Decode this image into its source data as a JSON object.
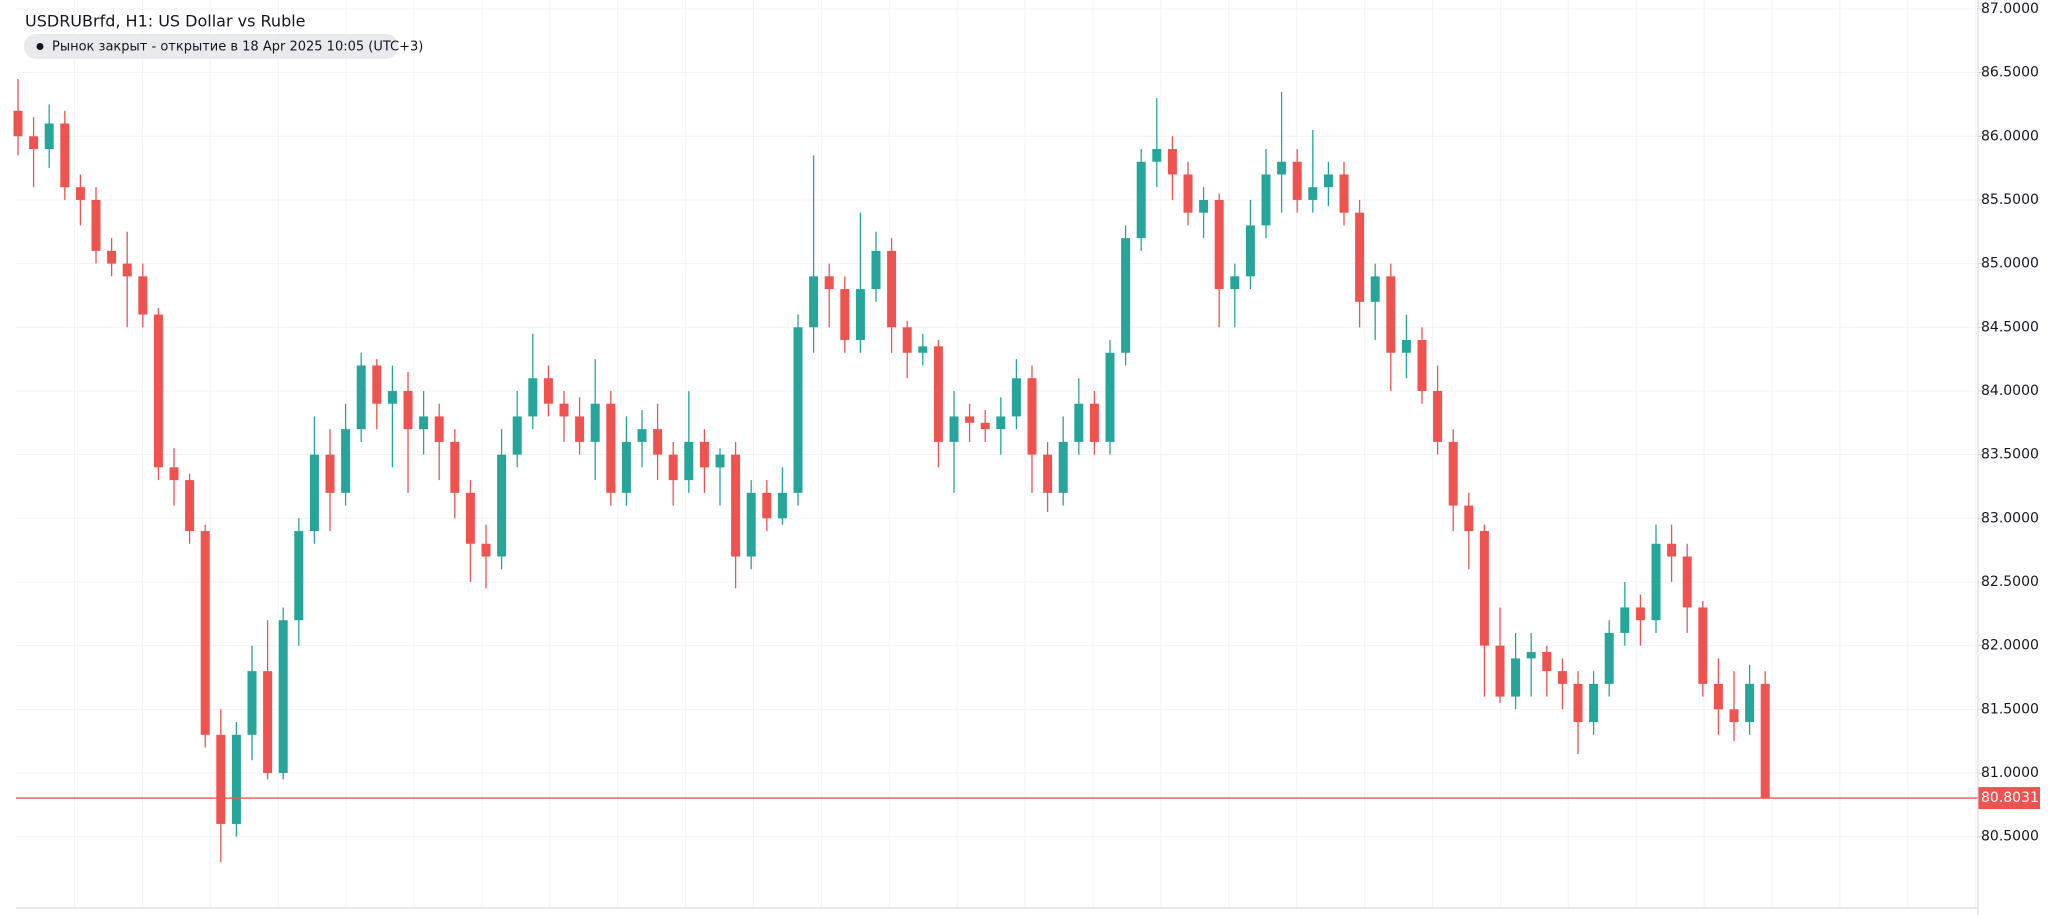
{
  "chart_data": {
    "type": "candlestick",
    "title": "USDRUBrfd, H1: US Dollar vs Ruble",
    "status": "Рынок закрыт - открытие в 18 Apr 2025 10:05 (UTC+3)",
    "up_color": "#26a69a",
    "down_color": "#ef5350",
    "grid": true,
    "ylim": [
      79.94,
      87.07
    ],
    "yticks": [
      {
        "value": 80.5,
        "label": "80.5000"
      },
      {
        "value": 81,
        "label": "81.0000"
      },
      {
        "value": 81.5,
        "label": "81.5000"
      },
      {
        "value": 82,
        "label": "82.0000"
      },
      {
        "value": 82.5,
        "label": "82.5000"
      },
      {
        "value": 83,
        "label": "83.0000"
      },
      {
        "value": 83.5,
        "label": "83.5000"
      },
      {
        "value": 84,
        "label": "84.0000"
      },
      {
        "value": 84.5,
        "label": "84.5000"
      },
      {
        "value": 85,
        "label": "85.0000"
      },
      {
        "value": 85.5,
        "label": "85.5000"
      },
      {
        "value": 86,
        "label": "86.0000"
      },
      {
        "value": 86.5,
        "label": "86.5000"
      },
      {
        "value": 87,
        "label": "87.0000"
      }
    ],
    "last_price": 80.8031,
    "open": [
      86.2,
      86.0,
      85.9,
      86.1,
      85.6,
      85.5,
      85.1,
      85.0,
      84.9,
      84.6,
      83.4,
      83.3,
      82.9,
      81.3,
      80.6,
      81.3,
      81.8,
      81.0,
      82.2,
      82.9,
      83.5,
      83.2,
      83.7,
      84.2,
      83.9,
      84.0,
      83.7,
      83.8,
      83.6,
      83.2,
      82.8,
      82.7,
      83.5,
      83.8,
      84.1,
      83.9,
      83.8,
      83.6,
      83.9,
      83.2,
      83.6,
      83.7,
      83.5,
      83.3,
      83.6,
      83.4,
      83.5,
      82.7,
      83.2,
      83.0,
      83.2,
      84.5,
      84.9,
      84.8,
      84.4,
      84.8,
      85.1,
      84.5,
      84.3,
      84.35,
      83.6,
      83.8,
      83.75,
      83.7,
      83.8,
      84.1,
      83.5,
      83.2,
      83.6,
      83.9,
      83.6,
      84.3,
      85.2,
      85.8,
      85.9,
      85.7,
      85.4,
      85.5,
      84.8,
      84.9,
      85.3,
      85.7,
      85.8,
      85.5,
      85.6,
      85.7,
      85.4,
      84.7,
      84.9,
      84.3,
      84.4,
      84.0,
      83.6,
      83.1,
      82.9,
      82.0,
      81.6,
      81.9,
      81.95,
      81.8,
      81.7,
      81.4,
      81.7,
      82.1,
      82.3,
      82.2,
      82.8,
      82.7,
      82.3,
      81.7,
      81.5,
      81.4,
      81.7
    ],
    "high": [
      86.45,
      86.15,
      86.25,
      86.2,
      85.7,
      85.6,
      85.2,
      85.25,
      85.0,
      84.65,
      83.55,
      83.35,
      82.95,
      81.5,
      81.4,
      82.0,
      82.2,
      82.3,
      83.0,
      83.8,
      83.7,
      83.9,
      84.3,
      84.25,
      84.2,
      84.15,
      84.0,
      83.9,
      83.7,
      83.3,
      82.95,
      83.7,
      84.0,
      84.45,
      84.2,
      84.0,
      83.95,
      84.25,
      84.0,
      83.8,
      83.85,
      83.9,
      83.6,
      84.0,
      83.7,
      83.55,
      83.6,
      83.3,
      83.3,
      83.4,
      84.6,
      85.85,
      85.0,
      84.9,
      85.4,
      85.25,
      85.2,
      84.55,
      84.45,
      84.4,
      84.0,
      83.9,
      83.85,
      83.95,
      84.25,
      84.2,
      83.6,
      83.8,
      84.1,
      84.0,
      84.4,
      85.3,
      85.9,
      86.3,
      86.0,
      85.8,
      85.6,
      85.55,
      85.0,
      85.5,
      85.9,
      86.35,
      85.9,
      86.05,
      85.8,
      85.8,
      85.5,
      85.0,
      85.0,
      84.6,
      84.5,
      84.2,
      83.7,
      83.2,
      82.95,
      82.3,
      82.1,
      82.1,
      82.0,
      81.9,
      81.8,
      81.8,
      82.2,
      82.5,
      82.4,
      82.95,
      82.95,
      82.8,
      82.35,
      81.9,
      81.8,
      81.85,
      81.8
    ],
    "low": [
      85.85,
      85.6,
      85.75,
      85.5,
      85.3,
      85.0,
      84.9,
      84.5,
      84.5,
      83.3,
      83.1,
      82.8,
      81.2,
      80.3,
      80.5,
      81.1,
      80.95,
      80.95,
      82.0,
      82.8,
      82.9,
      83.1,
      83.6,
      83.7,
      83.4,
      83.2,
      83.5,
      83.3,
      83.0,
      82.5,
      82.45,
      82.6,
      83.4,
      83.7,
      83.8,
      83.6,
      83.5,
      83.3,
      83.1,
      83.1,
      83.4,
      83.3,
      83.1,
      83.2,
      83.2,
      83.1,
      82.45,
      82.6,
      82.9,
      82.95,
      83.1,
      84.3,
      84.5,
      84.3,
      84.3,
      84.7,
      84.3,
      84.1,
      84.2,
      83.4,
      83.2,
      83.6,
      83.6,
      83.5,
      83.7,
      83.2,
      83.05,
      83.1,
      83.5,
      83.5,
      83.5,
      84.2,
      85.1,
      85.6,
      85.5,
      85.3,
      85.2,
      84.5,
      84.5,
      84.8,
      85.2,
      85.4,
      85.4,
      85.4,
      85.45,
      85.3,
      84.5,
      84.4,
      84.0,
      84.1,
      83.9,
      83.5,
      82.9,
      82.6,
      81.6,
      81.55,
      81.5,
      81.6,
      81.6,
      81.5,
      81.15,
      81.3,
      81.6,
      82.0,
      82.0,
      82.1,
      82.5,
      82.1,
      81.6,
      81.3,
      81.25,
      81.3,
      80.8
    ],
    "close": [
      86.0,
      85.9,
      86.1,
      85.6,
      85.5,
      85.1,
      85.0,
      84.9,
      84.6,
      83.4,
      83.3,
      82.9,
      81.3,
      80.6,
      81.3,
      81.8,
      81.0,
      82.2,
      82.9,
      83.5,
      83.2,
      83.7,
      84.2,
      83.9,
      84.0,
      83.7,
      83.8,
      83.6,
      83.2,
      82.8,
      82.7,
      83.5,
      83.8,
      84.1,
      83.9,
      83.8,
      83.6,
      83.9,
      83.2,
      83.6,
      83.7,
      83.5,
      83.3,
      83.6,
      83.4,
      83.5,
      82.7,
      83.2,
      83.0,
      83.2,
      84.5,
      84.9,
      84.8,
      84.4,
      84.8,
      85.1,
      84.5,
      84.3,
      84.35,
      83.6,
      83.8,
      83.75,
      83.7,
      83.8,
      84.1,
      83.5,
      83.2,
      83.6,
      83.9,
      83.6,
      84.3,
      85.2,
      85.8,
      85.9,
      85.7,
      85.4,
      85.5,
      84.8,
      84.9,
      85.3,
      85.7,
      85.8,
      85.5,
      85.6,
      85.7,
      85.4,
      84.7,
      84.9,
      84.3,
      84.4,
      84.0,
      83.6,
      83.1,
      82.9,
      82.0,
      81.6,
      81.9,
      81.95,
      81.8,
      81.7,
      81.4,
      81.7,
      82.1,
      82.3,
      82.2,
      82.8,
      82.7,
      82.3,
      81.7,
      81.5,
      81.4,
      81.7,
      80.8031
    ]
  }
}
